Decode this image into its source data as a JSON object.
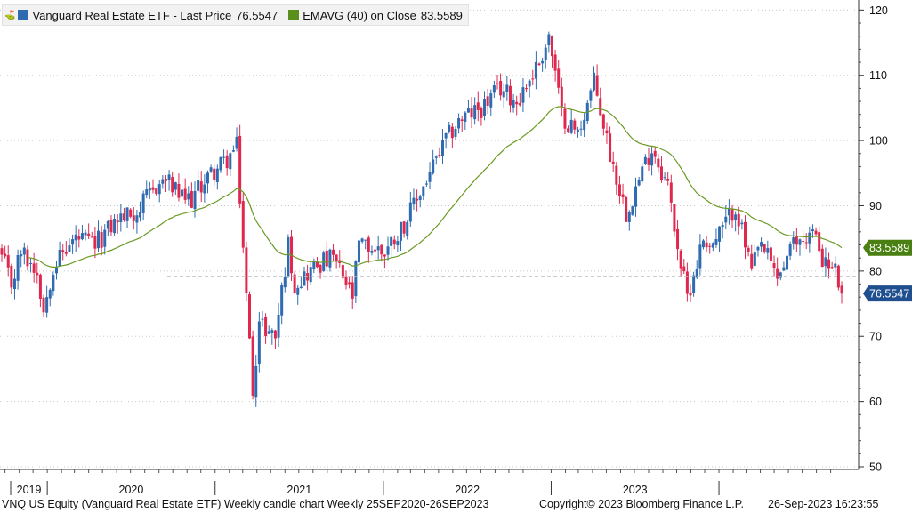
{
  "legend": {
    "pin_icon": "pin-icon",
    "series1_color": "#2e6bb0",
    "series1_text": "Vanguard Real Estate ETF - Last Price",
    "series1_value": "76.5547",
    "series2_color": "#5b8f1c",
    "series2_text": "EMAVG (40)  on Close",
    "series2_value": "83.5589"
  },
  "footer": {
    "left": "VNQ US Equity (Vanguard Real Estate ETF) Weekly candle chart  Weekly 25SEP2020-26SEP2023",
    "center": "Copyright© 2023 Bloomberg Finance L.P.",
    "right": "26-Sep-2023 16:23:55"
  },
  "chart_data": {
    "type": "candlestick",
    "yticks": [
      "50",
      "60",
      "70",
      "80",
      "90",
      "100",
      "110",
      "120"
    ],
    "ylim": [
      50,
      121
    ],
    "xlabels": [
      "2019",
      "2020",
      "2021",
      "2022",
      "2023"
    ],
    "grid": true,
    "colors": {
      "up": "#2e6bb0",
      "down": "#e0284f",
      "ema": "#6b9a24"
    },
    "last_price": {
      "label": "76.5547",
      "value": 76.5547,
      "color": "#1f4f8f"
    },
    "ema_last": {
      "label": "83.5589",
      "value": 83.5589,
      "color": "#4a7f12"
    },
    "date_range": [
      "2018-09-24",
      "2023-09-25"
    ],
    "year_starts": [
      "2019-01-01",
      "2020-01-01",
      "2021-01-01",
      "2022-01-01",
      "2023-01-01"
    ],
    "anchors": [
      [
        "2018-09-24",
        82
      ],
      [
        "2018-10-15",
        78
      ],
      [
        "2018-11-05",
        83
      ],
      [
        "2018-12-10",
        80
      ],
      [
        "2018-12-24",
        74
      ],
      [
        "2019-01-14",
        81
      ],
      [
        "2019-03-04",
        85
      ],
      [
        "2019-04-15",
        84
      ],
      [
        "2019-06-03",
        88
      ],
      [
        "2019-07-15",
        89
      ],
      [
        "2019-08-26",
        93
      ],
      [
        "2019-09-16",
        94
      ],
      [
        "2019-10-21",
        91
      ],
      [
        "2019-11-11",
        91
      ],
      [
        "2019-12-09",
        94
      ],
      [
        "2020-01-27",
        97
      ],
      [
        "2020-02-17",
        99
      ],
      [
        "2020-03-09",
        76
      ],
      [
        "2020-03-23",
        62
      ],
      [
        "2020-04-06",
        72
      ],
      [
        "2020-05-11",
        70
      ],
      [
        "2020-06-08",
        84
      ],
      [
        "2020-06-22",
        78
      ],
      [
        "2020-08-10",
        81
      ],
      [
        "2020-09-14",
        82
      ],
      [
        "2020-10-26",
        76
      ],
      [
        "2020-11-09",
        84
      ],
      [
        "2021-01-04",
        83
      ],
      [
        "2021-02-22",
        88
      ],
      [
        "2021-04-05",
        94
      ],
      [
        "2021-05-17",
        100
      ],
      [
        "2021-06-14",
        103
      ],
      [
        "2021-08-02",
        105
      ],
      [
        "2021-09-13",
        108
      ],
      [
        "2021-10-18",
        106
      ],
      [
        "2021-12-06",
        112
      ],
      [
        "2021-12-27",
        116
      ],
      [
        "2022-01-24",
        104
      ],
      [
        "2022-02-28",
        101
      ],
      [
        "2022-04-04",
        109
      ],
      [
        "2022-05-09",
        98
      ],
      [
        "2022-06-13",
        89
      ],
      [
        "2022-08-08",
        99
      ],
      [
        "2022-09-12",
        93
      ],
      [
        "2022-10-10",
        81
      ],
      [
        "2022-10-24",
        76
      ],
      [
        "2022-11-28",
        85
      ],
      [
        "2022-12-19",
        84
      ],
      [
        "2023-02-06",
        90
      ],
      [
        "2023-03-13",
        80
      ],
      [
        "2023-04-03",
        84
      ],
      [
        "2023-05-08",
        79
      ],
      [
        "2023-06-12",
        84
      ],
      [
        "2023-07-24",
        86
      ],
      [
        "2023-08-21",
        81
      ],
      [
        "2023-09-11",
        80
      ],
      [
        "2023-09-25",
        76.5547
      ]
    ]
  }
}
